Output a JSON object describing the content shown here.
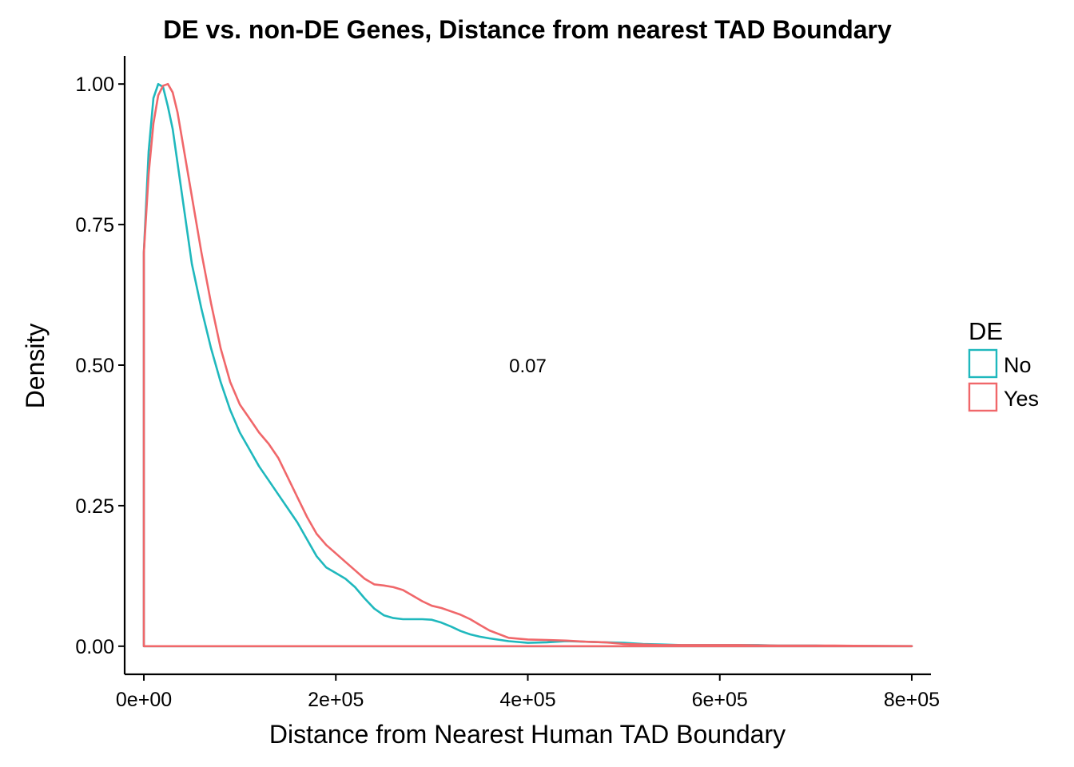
{
  "chart_data": {
    "type": "line",
    "title": "DE vs. non-DE Genes, Distance from nearest TAD Boundary",
    "xlabel": "Distance from Nearest Human TAD Boundary",
    "ylabel": "Density",
    "xlim": [
      -20000,
      820000
    ],
    "ylim": [
      -0.05,
      1.05
    ],
    "x_ticks": [
      0,
      200000,
      400000,
      600000,
      800000
    ],
    "x_tick_labels": [
      "0e+00",
      "2e+05",
      "4e+05",
      "6e+05",
      "8e+05"
    ],
    "y_ticks": [
      0,
      0.25,
      0.5,
      0.75,
      1.0
    ],
    "y_tick_labels": [
      "0.00",
      "0.25",
      "0.50",
      "0.75",
      "1.00"
    ],
    "grid": false,
    "legend": {
      "title": "DE",
      "position": "right"
    },
    "annotation": {
      "text": "0.07",
      "x": 400000,
      "y": 0.5
    },
    "series": [
      {
        "name": "No",
        "color": "#1fb8bd",
        "x": [
          0,
          5000,
          10000,
          15000,
          20000,
          25000,
          30000,
          35000,
          40000,
          50000,
          60000,
          70000,
          80000,
          90000,
          100000,
          110000,
          120000,
          130000,
          140000,
          150000,
          160000,
          170000,
          180000,
          190000,
          200000,
          210000,
          220000,
          230000,
          240000,
          250000,
          260000,
          270000,
          280000,
          290000,
          300000,
          310000,
          320000,
          330000,
          340000,
          350000,
          360000,
          380000,
          400000,
          420000,
          440000,
          460000,
          480000,
          500000,
          520000,
          540000,
          560000,
          580000,
          600000,
          620000,
          640000,
          660000,
          680000,
          700000,
          720000,
          740000,
          760000,
          780000,
          800000
        ],
        "y": [
          0.7,
          0.88,
          0.975,
          1.0,
          0.995,
          0.96,
          0.92,
          0.86,
          0.8,
          0.68,
          0.6,
          0.53,
          0.47,
          0.42,
          0.38,
          0.35,
          0.32,
          0.295,
          0.27,
          0.245,
          0.22,
          0.19,
          0.16,
          0.14,
          0.13,
          0.12,
          0.105,
          0.085,
          0.067,
          0.055,
          0.05,
          0.048,
          0.048,
          0.048,
          0.047,
          0.042,
          0.035,
          0.027,
          0.021,
          0.017,
          0.014,
          0.009,
          0.006,
          0.007,
          0.009,
          0.008,
          0.007,
          0.006,
          0.004,
          0.003,
          0.002,
          0.002,
          0.002,
          0.002,
          0.002,
          0.001,
          0.001,
          0.001,
          0.0005,
          0.0004,
          0.0003,
          0.0002,
          0.0001
        ]
      },
      {
        "name": "Yes",
        "color": "#f0676a",
        "x": [
          0,
          5000,
          10000,
          15000,
          20000,
          25000,
          30000,
          35000,
          40000,
          50000,
          60000,
          70000,
          80000,
          90000,
          100000,
          110000,
          120000,
          130000,
          140000,
          150000,
          160000,
          170000,
          180000,
          190000,
          200000,
          210000,
          220000,
          230000,
          240000,
          250000,
          260000,
          270000,
          280000,
          290000,
          300000,
          310000,
          320000,
          330000,
          340000,
          350000,
          360000,
          380000,
          400000,
          420000,
          440000,
          460000,
          480000,
          500000,
          520000,
          540000,
          560000,
          580000,
          600000,
          620000,
          640000,
          660000,
          680000,
          700000,
          720000,
          740000,
          760000,
          780000,
          800000
        ],
        "y": [
          0.7,
          0.84,
          0.93,
          0.98,
          0.997,
          1.0,
          0.985,
          0.95,
          0.9,
          0.8,
          0.7,
          0.61,
          0.53,
          0.47,
          0.43,
          0.405,
          0.38,
          0.36,
          0.335,
          0.3,
          0.265,
          0.23,
          0.2,
          0.18,
          0.165,
          0.15,
          0.135,
          0.12,
          0.11,
          0.108,
          0.105,
          0.1,
          0.09,
          0.08,
          0.072,
          0.068,
          0.062,
          0.056,
          0.048,
          0.038,
          0.028,
          0.015,
          0.012,
          0.011,
          0.01,
          0.008,
          0.007,
          0.004,
          0.003,
          0.002,
          0.002,
          0.002,
          0.002,
          0.002,
          0.0015,
          0.001,
          0.001,
          0.001,
          0.001,
          0.0008,
          0.0006,
          0.0004,
          0.0002
        ]
      }
    ]
  }
}
